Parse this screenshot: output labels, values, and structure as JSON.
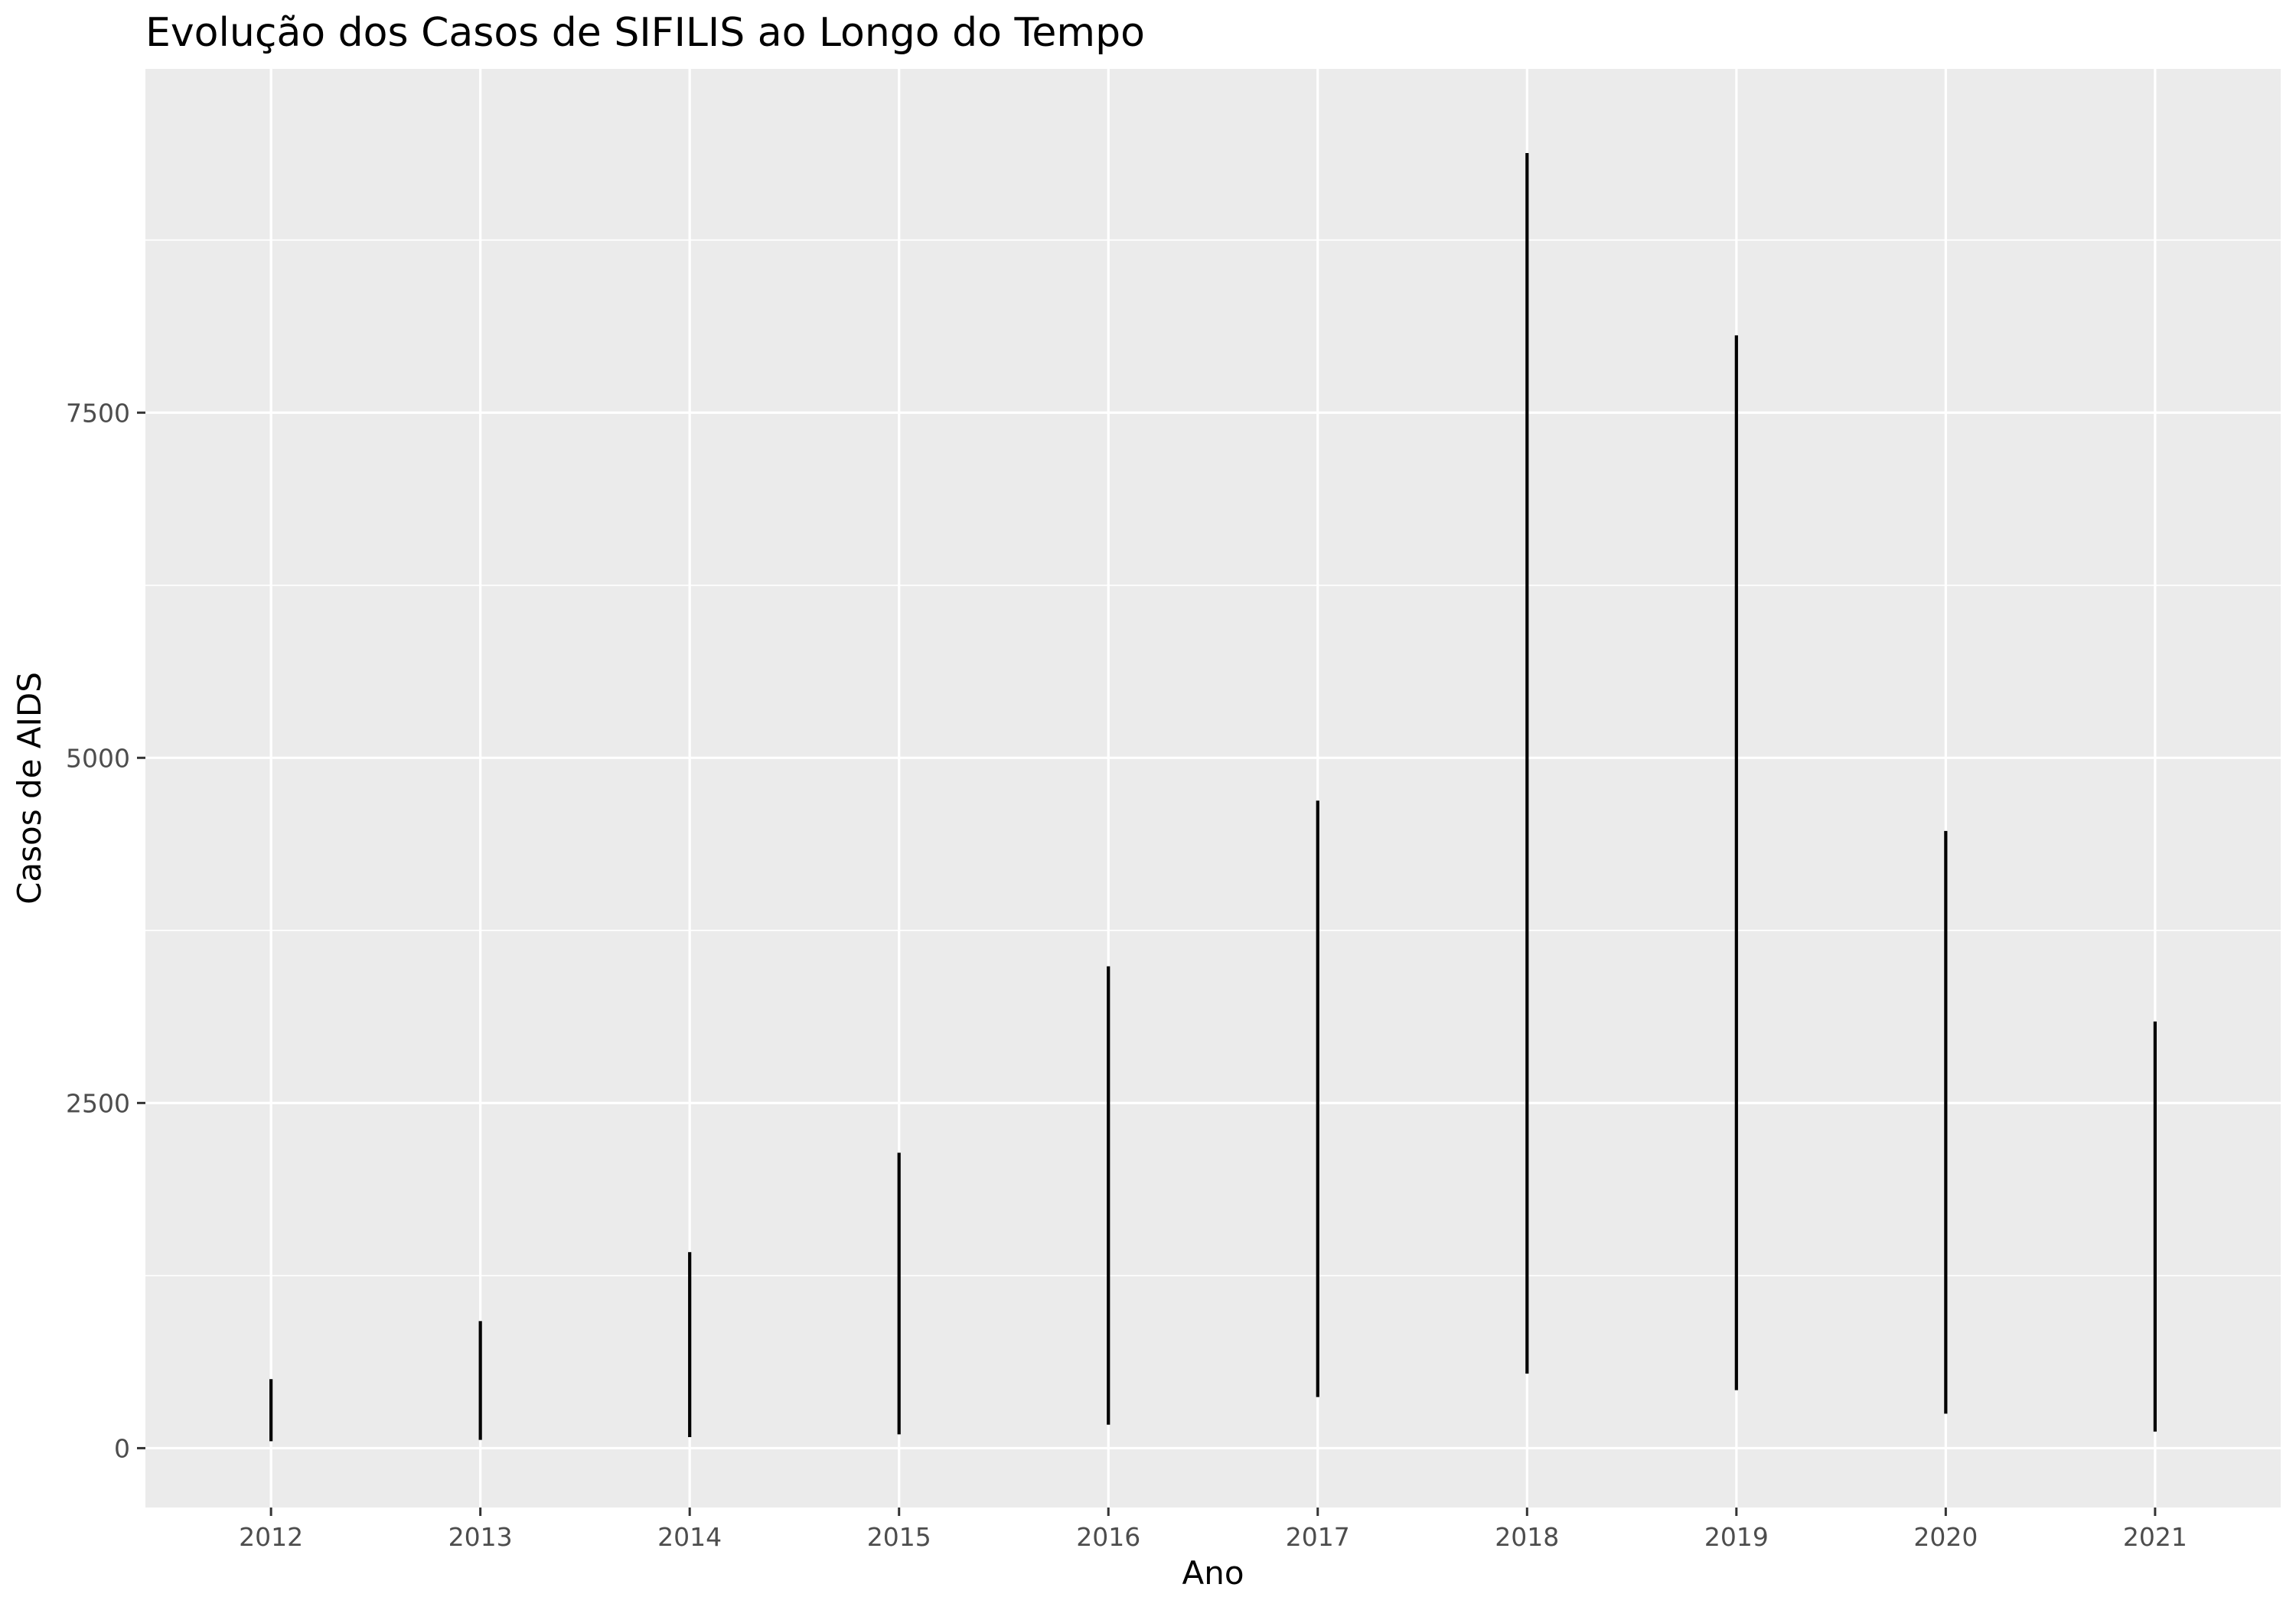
{
  "chart_data": {
    "type": "line",
    "title": "Evolução dos Casos de SIFILIS ao Longo do Tempo",
    "xlabel": "Ano",
    "ylabel": "Casos de AIDS",
    "x_ticks": [
      "2012",
      "2013",
      "2014",
      "2015",
      "2016",
      "2017",
      "2018",
      "2019",
      "2020",
      "2021"
    ],
    "y_ticks": [
      "0",
      "2500",
      "5000",
      "7500"
    ],
    "xlim": [
      2011.4,
      2021.6
    ],
    "ylim": [
      -430,
      9990
    ],
    "grid": true,
    "legend": "none",
    "series": [
      {
        "values": [
          {
            "x": 2012,
            "y": [
              50,
              500
            ]
          },
          {
            "x": 2013,
            "y": [
              60,
              920
            ]
          },
          {
            "x": 2014,
            "y": [
              80,
              1420
            ]
          },
          {
            "x": 2015,
            "y": [
              100,
              2140
            ]
          },
          {
            "x": 2016,
            "y": [
              170,
              3490
            ]
          },
          {
            "x": 2017,
            "y": [
              370,
              4690
            ]
          },
          {
            "x": 2018,
            "y": [
              540,
              9380
            ]
          },
          {
            "x": 2019,
            "y": [
              420,
              8060
            ]
          },
          {
            "x": 2020,
            "y": [
              250,
              4470
            ]
          },
          {
            "x": 2021,
            "y": [
              120,
              3090
            ]
          }
        ]
      }
    ],
    "colors": {
      "panel_bg": "#EBEBEB",
      "grid": "#FFFFFF",
      "line": "#000000",
      "tick_text": "#4D4D4D"
    }
  }
}
